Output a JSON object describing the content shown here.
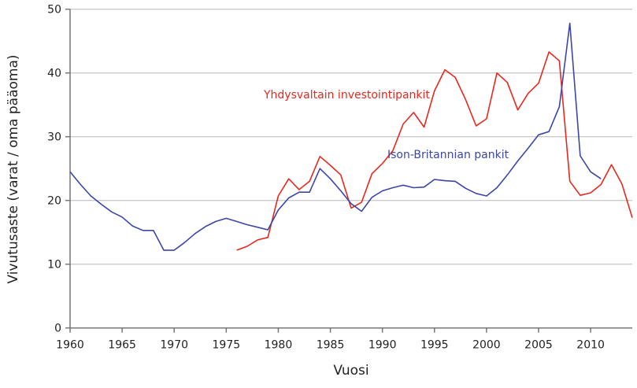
{
  "chart_data": {
    "type": "line",
    "title": "",
    "xlabel": "Vuosi",
    "ylabel": "Vivutusaste (varat / oma pääoma)",
    "xlim": [
      1960,
      2014
    ],
    "ylim": [
      0,
      50
    ],
    "xticks": [
      1960,
      1965,
      1970,
      1975,
      1980,
      1985,
      1990,
      1995,
      2000,
      2005,
      2010
    ],
    "yticks": [
      0,
      10,
      20,
      30,
      40,
      50
    ],
    "grid": "horizontal",
    "series": [
      {
        "name": "Yhdysvaltain investointipankit",
        "color": "#e8281e",
        "x": [
          1976,
          1977,
          1978,
          1979,
          1980,
          1981,
          1982,
          1983,
          1984,
          1985,
          1986,
          1987,
          1988,
          1989,
          1990,
          1991,
          1992,
          1993,
          1994,
          1995,
          1996,
          1997,
          1998,
          1999,
          2000,
          2001,
          2002,
          2003,
          2004,
          2005,
          2006,
          2007,
          2008,
          2009,
          2010,
          2011,
          2012,
          2013,
          2014
        ],
        "y": [
          12.2,
          12.8,
          13.8,
          14.2,
          20.7,
          23.4,
          21.7,
          23.0,
          26.9,
          25.5,
          24.0,
          18.8,
          19.7,
          24.2,
          25.8,
          27.8,
          32.0,
          33.8,
          31.5,
          37.2,
          40.5,
          39.3,
          35.8,
          31.7,
          32.8,
          40.0,
          38.5,
          34.2,
          36.8,
          38.4,
          43.3,
          41.9,
          23.0,
          20.8,
          21.2,
          22.5,
          25.6,
          22.6,
          17.3
        ]
      },
      {
        "name": "Ison-Britannian pankit",
        "color": "#3b46a8",
        "x": [
          1960,
          1961,
          1962,
          1963,
          1964,
          1965,
          1966,
          1967,
          1968,
          1969,
          1970,
          1971,
          1972,
          1973,
          1974,
          1975,
          1976,
          1977,
          1978,
          1979,
          1980,
          1981,
          1982,
          1983,
          1984,
          1985,
          1986,
          1987,
          1988,
          1989,
          1990,
          1991,
          1992,
          1993,
          1994,
          1995,
          1996,
          1997,
          1998,
          1999,
          2000,
          2001,
          2002,
          2003,
          2004,
          2005,
          2006,
          2007,
          2008,
          2009,
          2010,
          2011
        ],
        "y": [
          24.5,
          22.5,
          20.7,
          19.4,
          18.2,
          17.4,
          16.0,
          15.3,
          15.3,
          12.2,
          12.2,
          13.4,
          14.8,
          15.9,
          16.7,
          17.2,
          16.7,
          16.2,
          15.8,
          15.4,
          18.5,
          20.4,
          21.3,
          21.3,
          25.0,
          23.4,
          21.5,
          19.5,
          18.3,
          20.5,
          21.5,
          22.0,
          22.4,
          22.0,
          22.1,
          23.3,
          23.1,
          23.0,
          21.9,
          21.1,
          20.7,
          22.0,
          24.0,
          26.2,
          28.2,
          30.3,
          30.8,
          34.7,
          47.8,
          27.0,
          24.5,
          23.4
        ]
      }
    ]
  }
}
